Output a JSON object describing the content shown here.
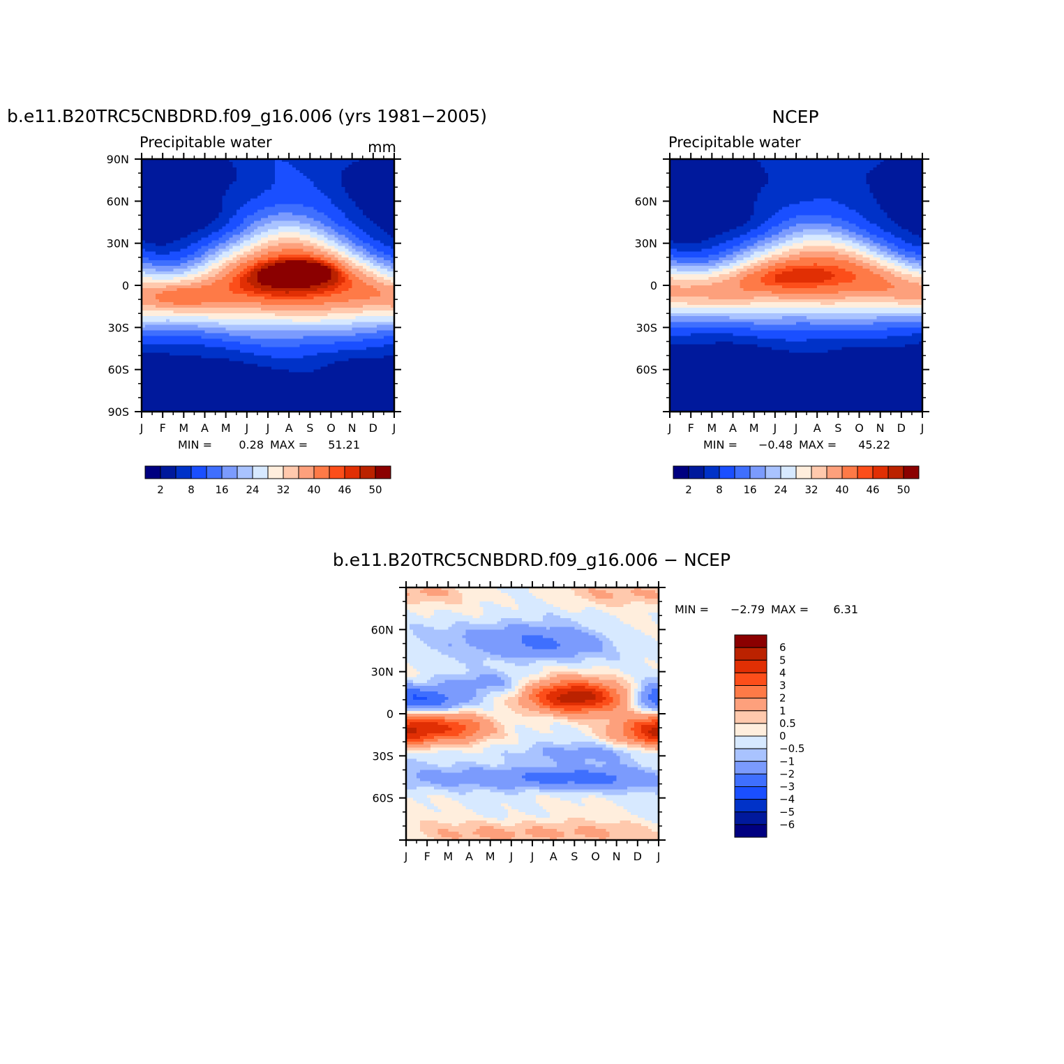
{
  "chart_data": [
    {
      "type": "heatmap",
      "title": "b.e11.B20TRC5CNBDRD.f09_g16.006 (yrs 1981−2005)",
      "subtitle_left": "Precipitable  water",
      "units": "mm",
      "x_tick_labels": [
        "J",
        "F",
        "M",
        "A",
        "M",
        "J",
        "J",
        "A",
        "S",
        "O",
        "N",
        "D",
        "J"
      ],
      "y_tick_labels": [
        "90N",
        "60N",
        "30N",
        "0",
        "30S",
        "60S",
        "90S"
      ],
      "y_ticks": [
        90,
        60,
        30,
        0,
        -30,
        -60,
        -90
      ],
      "ylim": [
        -90,
        90
      ],
      "min_label": "MIN =",
      "min_value": "0.28",
      "max_label": "MAX =",
      "max_value": "51.21",
      "colorbar_labels": [
        "2",
        "8",
        "16",
        "24",
        "32",
        "40",
        "46",
        "50"
      ],
      "levels": [
        2,
        5,
        8,
        12,
        16,
        20,
        24,
        28,
        32,
        36,
        40,
        44,
        46,
        48,
        50
      ],
      "field": {
        "p0": 34.0,
        "p1": 14.0,
        "cen": -2,
        "amp": 7,
        "w0": 24,
        "w1": 14,
        "base": 2.5,
        "sp": 0.45,
        "pol": 5.0,
        "loc": [
          {
            "m": 7.7,
            "lat": 10,
            "a": 9.0,
            "sm": 1.2,
            "sl": 6
          },
          {
            "m": 1.7,
            "lat": -8,
            "a": 6.0,
            "sm": 1.1,
            "sl": 6
          }
        ]
      }
    },
    {
      "type": "heatmap",
      "title": "NCEP",
      "subtitle_left": "Precipitable  water",
      "x_tick_labels": [
        "J",
        "F",
        "M",
        "A",
        "M",
        "J",
        "J",
        "A",
        "S",
        "O",
        "N",
        "D",
        "J"
      ],
      "y_tick_labels": [
        "60N",
        "30N",
        "0",
        "30S",
        "60S"
      ],
      "y_ticks": [
        60,
        30,
        0,
        -30,
        -60
      ],
      "ylim": [
        -90,
        90
      ],
      "min_label": "MIN =",
      "min_value": "−0.48",
      "max_label": "MAX =",
      "max_value": "45.22",
      "colorbar_labels": [
        "2",
        "8",
        "16",
        "24",
        "32",
        "40",
        "46",
        "50"
      ],
      "levels": [
        2,
        5,
        8,
        12,
        16,
        20,
        24,
        28,
        32,
        36,
        40,
        44,
        46,
        48,
        50
      ],
      "field": {
        "p0": 34.0,
        "p1": 9.0,
        "cen": 1,
        "amp": 6,
        "w0": 22,
        "w1": 10,
        "base": 2.5,
        "sp": 0.4,
        "pol": 5.0,
        "loc": [
          {
            "m": 5.0,
            "lat": 6,
            "a": 2.5,
            "sm": 2.0,
            "sl": 7
          }
        ]
      }
    },
    {
      "type": "heatmap",
      "title": "b.e11.B20TRC5CNBDRD.f09_g16.006  −  NCEP",
      "x_tick_labels": [
        "J",
        "F",
        "M",
        "A",
        "M",
        "J",
        "J",
        "A",
        "S",
        "O",
        "N",
        "D",
        "J"
      ],
      "y_tick_labels": [
        "60N",
        "30N",
        "0",
        "30S",
        "60S"
      ],
      "y_ticks": [
        60,
        30,
        0,
        -30,
        -60
      ],
      "ylim": [
        -90,
        90
      ],
      "min_label": "MIN =",
      "min_value": "−2.79",
      "max_label": "MAX =",
      "max_value": "6.31",
      "colorbar_labels": [
        "6",
        "5",
        "4",
        "3",
        "2",
        "1",
        "0.5",
        "0",
        "−0.5",
        "−1",
        "−2",
        "−3",
        "−4",
        "−5",
        "−6"
      ],
      "levels": [
        -6,
        -5,
        -4,
        -3,
        -2,
        -1,
        -0.5,
        0,
        0.5,
        1,
        2,
        3,
        4,
        5,
        6
      ],
      "field": {
        "blobs": [
          {
            "m": 8.0,
            "lat": 12,
            "a": 5.6,
            "sm": 1.6,
            "sl": 8
          },
          {
            "m": 2.0,
            "lat": -10,
            "a": 3.6,
            "sm": 1.3,
            "sl": 7
          },
          {
            "m": 11.3,
            "lat": -12,
            "a": 2.6,
            "sm": 1.2,
            "sl": 8
          },
          {
            "m": 0.2,
            "lat": -14,
            "a": 2.2,
            "sm": 0.8,
            "sl": 8
          },
          {
            "m": 1.3,
            "lat": 10,
            "a": -2.6,
            "sm": 1.2,
            "sl": 7
          },
          {
            "m": 11.8,
            "lat": 12,
            "a": -1.8,
            "sm": 0.8,
            "sl": 7
          },
          {
            "m": 6.5,
            "lat": 48,
            "a": -1.6,
            "sm": 2.0,
            "sl": 8
          },
          {
            "m": 4.5,
            "lat": 55,
            "a": -1.2,
            "sm": 2.5,
            "sl": 9
          },
          {
            "m": 8.5,
            "lat": -28,
            "a": -1.2,
            "sm": 3.0,
            "sl": 5
          },
          {
            "m": 6.0,
            "lat": -45,
            "a": -1.6,
            "sm": 3.5,
            "sl": 6
          },
          {
            "m": 9.0,
            "lat": -47,
            "a": -1.3,
            "sm": 3.0,
            "sl": 6
          },
          {
            "m": 6.0,
            "lat": -85,
            "a": 1.3,
            "sm": 4.0,
            "sl": 6
          },
          {
            "m": 1.0,
            "lat": 86,
            "a": 0.8,
            "sm": 1.5,
            "sl": 6
          },
          {
            "m": 9.5,
            "lat": 86,
            "a": 0.8,
            "sm": 2.0,
            "sl": 6
          },
          {
            "m": 4.0,
            "lat": 22,
            "a": -1.1,
            "sm": 1.5,
            "sl": 6
          }
        ]
      }
    }
  ],
  "colors": {
    "palette": [
      "#000080",
      "#00199c",
      "#0032c8",
      "#1a4fff",
      "#3f6ffe",
      "#7b9bfd",
      "#a9c3ff",
      "#d7e9ff",
      "#ffeedd",
      "#ffc9ad",
      "#fda07c",
      "#fe7a47",
      "#fc4e1a",
      "#e12f04",
      "#bb2200",
      "#8b0000"
    ],
    "frame": "#000000"
  }
}
